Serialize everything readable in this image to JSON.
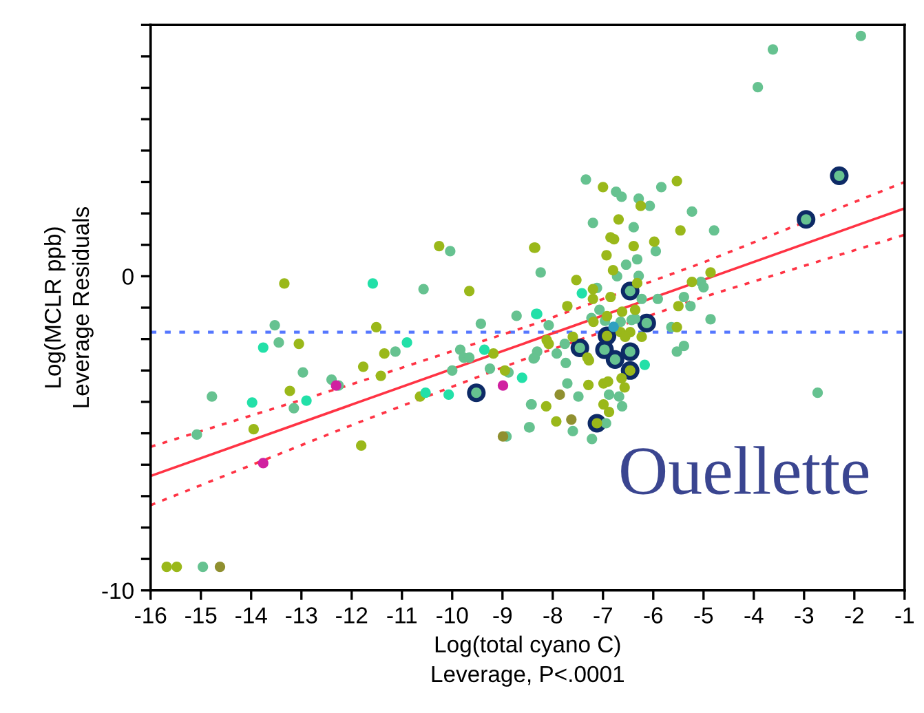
{
  "chart_data": {
    "type": "scatter",
    "xlabel": "Log(total cyano C)\nLeverage, P<.0001",
    "ylabel": "Log(MCLR ppb)\nLeverage Residuals",
    "xlim": [
      -16,
      -1
    ],
    "xticks": [
      -16,
      -15,
      -14,
      -13,
      -12,
      -11,
      -10,
      -9,
      -8,
      -7,
      -6,
      -5,
      -4,
      -3,
      -2,
      -1
    ],
    "ylim": [
      -10,
      8
    ],
    "yticks": [
      {
        "value": -10,
        "label": "-10"
      },
      {
        "value": -9,
        "label": null
      },
      {
        "value": -8,
        "label": null
      },
      {
        "value": -7,
        "label": null
      },
      {
        "value": -6,
        "label": null
      },
      {
        "value": -5,
        "label": null
      },
      {
        "value": -4,
        "label": null
      },
      {
        "value": -3,
        "label": null
      },
      {
        "value": -2,
        "label": null
      },
      {
        "value": -1,
        "label": null
      },
      {
        "value": 0,
        "label": "0"
      },
      {
        "value": 1,
        "label": null
      },
      {
        "value": 2,
        "label": null
      },
      {
        "value": 3,
        "label": null
      },
      {
        "value": 4,
        "label": null
      },
      {
        "value": 5,
        "label": null
      },
      {
        "value": 6,
        "label": null
      },
      {
        "value": 7,
        "label": null
      },
      {
        "value": 8,
        "label": null
      }
    ],
    "grid": false,
    "marker": "circle",
    "annotations": [
      "Ouellette"
    ],
    "ref_lines": [
      {
        "axis": "y",
        "value": -1.78,
        "color": "#5577ff",
        "line_style": "dotted"
      }
    ],
    "series": [
      {
        "color": "#66c290",
        "x": [
          -14.96,
          -15.08,
          -14.78,
          -13.53,
          -13.45,
          -13.15,
          -12.97,
          -12.4,
          -12.26,
          -11.13,
          -10.57,
          -10.04,
          -10.0,
          -9.84,
          -9.77,
          -9.66,
          -9.52,
          -9.43,
          -9.25,
          -8.88,
          -8.92,
          -8.72,
          -8.43,
          -8.47,
          -8.36,
          -8.24,
          -8.08,
          -8.31,
          -8.38,
          -7.92,
          -7.74,
          -7.76,
          -7.71,
          -7.49,
          -7.46,
          -8.42,
          -8.46,
          -7.6,
          -7.22,
          -6.94,
          -6.97,
          -6.76,
          -6.46,
          -6.46,
          -6.13,
          -6.88,
          -6.68,
          -6.62,
          -7.12,
          -7.07,
          -7.23,
          -6.96,
          -6.65,
          -6.43,
          -6.36,
          -6.23,
          -6.29,
          -6.32,
          -6.54,
          -6.72,
          -6.39,
          -7.2,
          -7.34,
          -6.74,
          -6.63,
          -6.29,
          -6.07,
          -5.84,
          -5.23,
          -5.95,
          -4.79,
          -5.91,
          -5.39,
          -5.26,
          -5.05,
          -5.0,
          -5.64,
          -5.53,
          -5.39,
          -4.86,
          -3.92,
          -3.62,
          -1.87,
          -2.96,
          -2.3,
          -2.73
        ],
        "values": [
          -9.25,
          -5.04,
          -3.83,
          -1.56,
          -2.11,
          -4.2,
          -3.06,
          -3.29,
          -3.48,
          -2.4,
          -0.41,
          0.8,
          -3.0,
          -2.34,
          -2.59,
          -2.59,
          -3.71,
          -1.51,
          -2.94,
          -3.06,
          -5.1,
          -1.26,
          -4.08,
          -4.81,
          -2.59,
          0.12,
          -1.56,
          -2.4,
          -2.62,
          -2.46,
          -2.76,
          -2.15,
          -3.41,
          -3.83,
          -2.28,
          -4.08,
          -4.81,
          -4.93,
          -5.18,
          -4.68,
          -2.34,
          -2.65,
          -2.4,
          -0.47,
          -1.49,
          -3.77,
          -3.83,
          -4.14,
          -0.37,
          -1.07,
          -1.33,
          -1.42,
          -1.45,
          -1.39,
          -1.35,
          -0.72,
          0.01,
          0.54,
          0.37,
          0.0,
          1.56,
          1.7,
          3.08,
          2.69,
          2.53,
          2.47,
          2.24,
          2.84,
          2.06,
          0.8,
          1.46,
          -0.72,
          -0.66,
          -0.95,
          -0.18,
          -0.35,
          -1.62,
          -2.4,
          -2.22,
          -1.37,
          6.02,
          7.22,
          7.65,
          1.81,
          3.2,
          -3.71
        ]
      },
      {
        "color": "#9ab81a",
        "x": [
          -15.68,
          -15.48,
          -13.95,
          -13.34,
          -13.23,
          -13.05,
          -11.81,
          -11.77,
          -11.51,
          -11.42,
          -11.35,
          -10.64,
          -10.26,
          -9.66,
          -9.18,
          -8.95,
          -8.37,
          -8.35,
          -8.12,
          -8.08,
          -7.6,
          -8.13,
          -7.93,
          -7.12,
          -7.29,
          -7.28,
          -7.31,
          -6.92,
          -6.46,
          -6.99,
          -6.9,
          -6.99,
          -6.88,
          -6.63,
          -6.57,
          -7.71,
          -7.53,
          -7.2,
          -7.2,
          -7.19,
          -6.92,
          -6.85,
          -6.62,
          -6.65,
          -6.36,
          -6.46,
          -6.23,
          -6.32,
          -6.8,
          -6.93,
          -6.85,
          -6.78,
          -6.39,
          -6.69,
          -7.0,
          -6.25,
          -5.53,
          -5.98,
          -5.46,
          -5.5,
          -5.23,
          -4.86,
          -5.53,
          -6.56
        ],
        "values": [
          -9.25,
          -9.25,
          -4.87,
          -0.23,
          -3.65,
          -2.15,
          -5.39,
          -2.88,
          -1.62,
          -3.17,
          -2.46,
          -3.83,
          0.96,
          -0.47,
          -2.46,
          -3.0,
          0.91,
          0.91,
          -2.03,
          -2.15,
          -1.93,
          -4.14,
          -4.62,
          -4.68,
          -3.46,
          -2.68,
          -2.59,
          -1.9,
          -3.0,
          -3.41,
          -3.35,
          -4.08,
          -4.32,
          -3.25,
          -3.54,
          -0.95,
          -0.12,
          -0.41,
          -0.72,
          -1.45,
          -1.27,
          -0.66,
          -1.13,
          -1.78,
          -1.07,
          -1.78,
          -1.93,
          -0.22,
          0.19,
          0.67,
          1.24,
          1.18,
          0.96,
          1.81,
          2.84,
          2.24,
          3.03,
          1.1,
          1.46,
          -0.95,
          -0.18,
          0.12,
          -1.62,
          -1.93
        ]
      },
      {
        "color": "#22e0a8",
        "x": [
          -13.98,
          -13.76,
          -12.9,
          -11.58,
          -10.9,
          -10.53,
          -10.07,
          -9.36,
          -8.61,
          -8.33,
          -8.31,
          -7.42,
          -6.17
        ],
        "values": [
          -4.02,
          -2.27,
          -3.96,
          -0.23,
          -2.11,
          -3.71,
          -3.77,
          -2.34,
          -3.23,
          -1.2,
          -1.2,
          -0.54,
          -2.82
        ]
      },
      {
        "color": "#d020a0",
        "x": [
          -13.76,
          -12.31,
          -8.99
        ],
        "values": [
          -5.95,
          -3.48,
          -3.48
        ]
      },
      {
        "color": "#909030",
        "x": [
          -14.62,
          -8.99,
          -7.86,
          -7.63
        ],
        "values": [
          -9.25,
          -5.1,
          -3.77,
          -4.56
        ]
      },
      {
        "color": "#30a0c0",
        "x": [
          -6.79
        ],
        "values": [
          -1.61
        ]
      },
      {
        "type": "bubble",
        "sizes": [
          1,
          1,
          1,
          1,
          1,
          1,
          1,
          1,
          1,
          1,
          1,
          1
        ],
        "color": "#0d2a66",
        "x": [
          -9.52,
          -7.46,
          -7.12,
          -6.97,
          -6.92,
          -6.76,
          -6.46,
          -6.46,
          -6.46,
          -6.13,
          -2.96,
          -2.3
        ],
        "values": [
          -3.71,
          -2.28,
          -4.68,
          -2.34,
          -1.9,
          -2.65,
          -2.4,
          -3.0,
          -0.47,
          -1.49,
          1.81,
          3.2
        ]
      },
      {
        "type": "line",
        "marker": "none",
        "color": "#ff3344",
        "line_style": "solid",
        "x": [
          -16,
          -1
        ],
        "values": [
          -6.36,
          2.16
        ]
      },
      {
        "type": "line",
        "marker": "none",
        "color": "#ff3344",
        "line_style": "dotted",
        "x": [
          -16,
          -12,
          -8.4,
          -5,
          -1
        ],
        "values": [
          -5.43,
          -3.44,
          -1.54,
          0.44,
          3.0
        ]
      },
      {
        "type": "line",
        "marker": "none",
        "color": "#ff3344",
        "line_style": "dotted",
        "x": [
          -16,
          -12,
          -8.4,
          -5,
          -1
        ],
        "values": [
          -7.29,
          -4.74,
          -2.54,
          -0.66,
          1.32
        ]
      }
    ]
  }
}
